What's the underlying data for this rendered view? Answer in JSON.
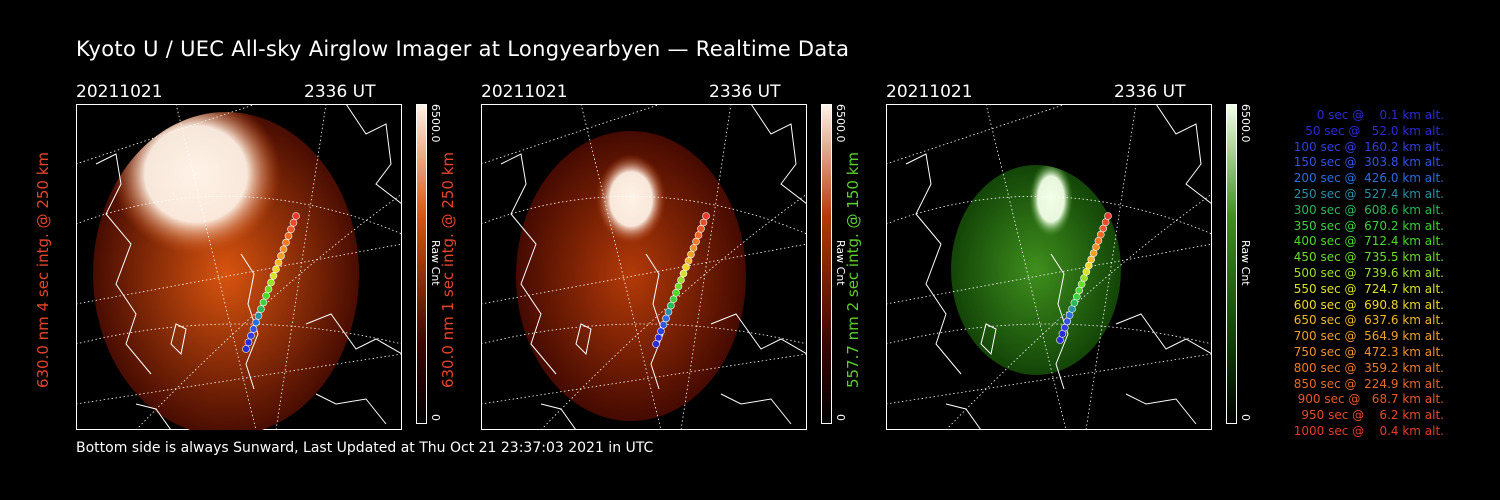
{
  "title": "Kyoto U / UEC All-sky Airglow Imager at Longyearbyen — Realtime Data",
  "footer": "Bottom side is always Sunward, Last Updated at Thu Oct 21 23:37:03 2021 in UTC",
  "panels": [
    {
      "date": "20211021",
      "time": "2336 UT",
      "ylabel": "630.0 nm 4 sec intg. @ 250 km",
      "label_color": "#e8442a",
      "cbar_max": "6500.0",
      "cbar_min": "0",
      "cbar_unit": "Raw Cnt",
      "cmap_dark": "#3a0500",
      "cmap_mid": "#d8540f",
      "cmap_light": "#fff2e6",
      "image_brightness": "high"
    },
    {
      "date": "20211021",
      "time": "2336 UT",
      "ylabel": "630.0 nm 1 sec intg. @ 250 km",
      "label_color": "#e8442a",
      "cbar_max": "6500.0",
      "cbar_min": "0",
      "cbar_unit": "Raw Cnt",
      "cmap_dark": "#3a0500",
      "cmap_mid": "#b33a08",
      "cmap_light": "#fff2e6",
      "image_brightness": "medium"
    },
    {
      "date": "20211021",
      "time": "2336 UT",
      "ylabel": "557.7 nm 2 sec intg. @ 150 km",
      "label_color": "#5ad12e",
      "cbar_max": "6500.0",
      "cbar_min": "0",
      "cbar_unit": "Raw Cnt",
      "cmap_dark": "#0e3d05",
      "cmap_mid": "#3f8f1d",
      "cmap_light": "#f2ffe8",
      "image_brightness": "medium"
    }
  ],
  "legend": [
    {
      "text": "0 sec @    0.1 km alt.",
      "color": "#2a2ad8"
    },
    {
      "text": "50 sec @   52.0 km alt.",
      "color": "#2a2ad8"
    },
    {
      "text": "100 sec @  160.2 km alt.",
      "color": "#2f3fe0"
    },
    {
      "text": "150 sec @  303.8 km alt.",
      "color": "#3352e6"
    },
    {
      "text": "200 sec @  426.0 km alt.",
      "color": "#2a6ee0"
    },
    {
      "text": "250 sec @  527.4 km alt.",
      "color": "#2a8fa8"
    },
    {
      "text": "300 sec @  608.6 km alt.",
      "color": "#2ab85a"
    },
    {
      "text": "350 sec @  670.2 km alt.",
      "color": "#3ad23a"
    },
    {
      "text": "400 sec @  712.4 km alt.",
      "color": "#4ad82a"
    },
    {
      "text": "450 sec @  735.5 km alt.",
      "color": "#6adc2a"
    },
    {
      "text": "500 sec @  739.6 km alt.",
      "color": "#9ae02a"
    },
    {
      "text": "550 sec @  724.7 km alt.",
      "color": "#d8e02a"
    },
    {
      "text": "600 sec @  690.8 km alt.",
      "color": "#f0d82a"
    },
    {
      "text": "650 sec @  637.6 km alt.",
      "color": "#f0b82a"
    },
    {
      "text": "700 sec @  564.9 km alt.",
      "color": "#f0a02a"
    },
    {
      "text": "750 sec @  472.3 km alt.",
      "color": "#f0902a"
    },
    {
      "text": "800 sec @  359.2 km alt.",
      "color": "#f07a2a"
    },
    {
      "text": "850 sec @  224.9 km alt.",
      "color": "#e8682a"
    },
    {
      "text": "900 sec @   68.7 km alt.",
      "color": "#e8582a"
    },
    {
      "text": "950 sec @    6.2 km alt.",
      "color": "#e84a2a"
    },
    {
      "text": "1000 sec @    0.4 km alt.",
      "color": "#e83a2a"
    }
  ]
}
